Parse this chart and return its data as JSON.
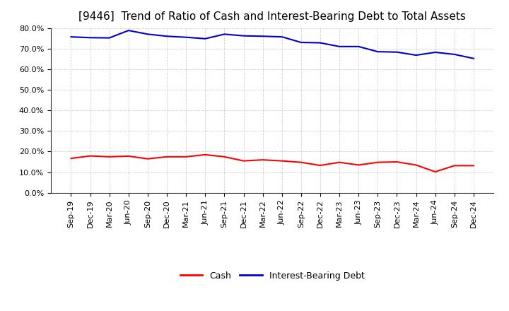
{
  "title": "[9446]  Trend of Ratio of Cash and Interest-Bearing Debt to Total Assets",
  "x_labels": [
    "Sep-19",
    "Dec-19",
    "Mar-20",
    "Jun-20",
    "Sep-20",
    "Dec-20",
    "Mar-21",
    "Jun-21",
    "Sep-21",
    "Dec-21",
    "Mar-22",
    "Jun-22",
    "Sep-22",
    "Dec-22",
    "Mar-23",
    "Jun-23",
    "Sep-23",
    "Dec-23",
    "Mar-24",
    "Jun-24",
    "Sep-24",
    "Dec-24"
  ],
  "cash": [
    0.167,
    0.179,
    0.175,
    0.178,
    0.165,
    0.175,
    0.175,
    0.185,
    0.175,
    0.155,
    0.16,
    0.155,
    0.148,
    0.133,
    0.148,
    0.135,
    0.148,
    0.15,
    0.135,
    0.102,
    0.132,
    0.132
  ],
  "interest_bearing_debt": [
    0.757,
    0.753,
    0.752,
    0.788,
    0.77,
    0.76,
    0.755,
    0.748,
    0.77,
    0.762,
    0.76,
    0.757,
    0.73,
    0.728,
    0.71,
    0.71,
    0.685,
    0.683,
    0.668,
    0.682,
    0.672,
    0.652
  ],
  "cash_color": "#ff0000",
  "debt_color": "#0000cc",
  "ylim": [
    0.0,
    0.8
  ],
  "yticks": [
    0.0,
    0.1,
    0.2,
    0.3,
    0.4,
    0.5,
    0.6,
    0.7,
    0.8
  ],
  "background_color": "#ffffff",
  "grid_color": "#999999",
  "title_fontsize": 11,
  "legend_labels": [
    "Cash",
    "Interest-Bearing Debt"
  ],
  "line_width": 1.5
}
